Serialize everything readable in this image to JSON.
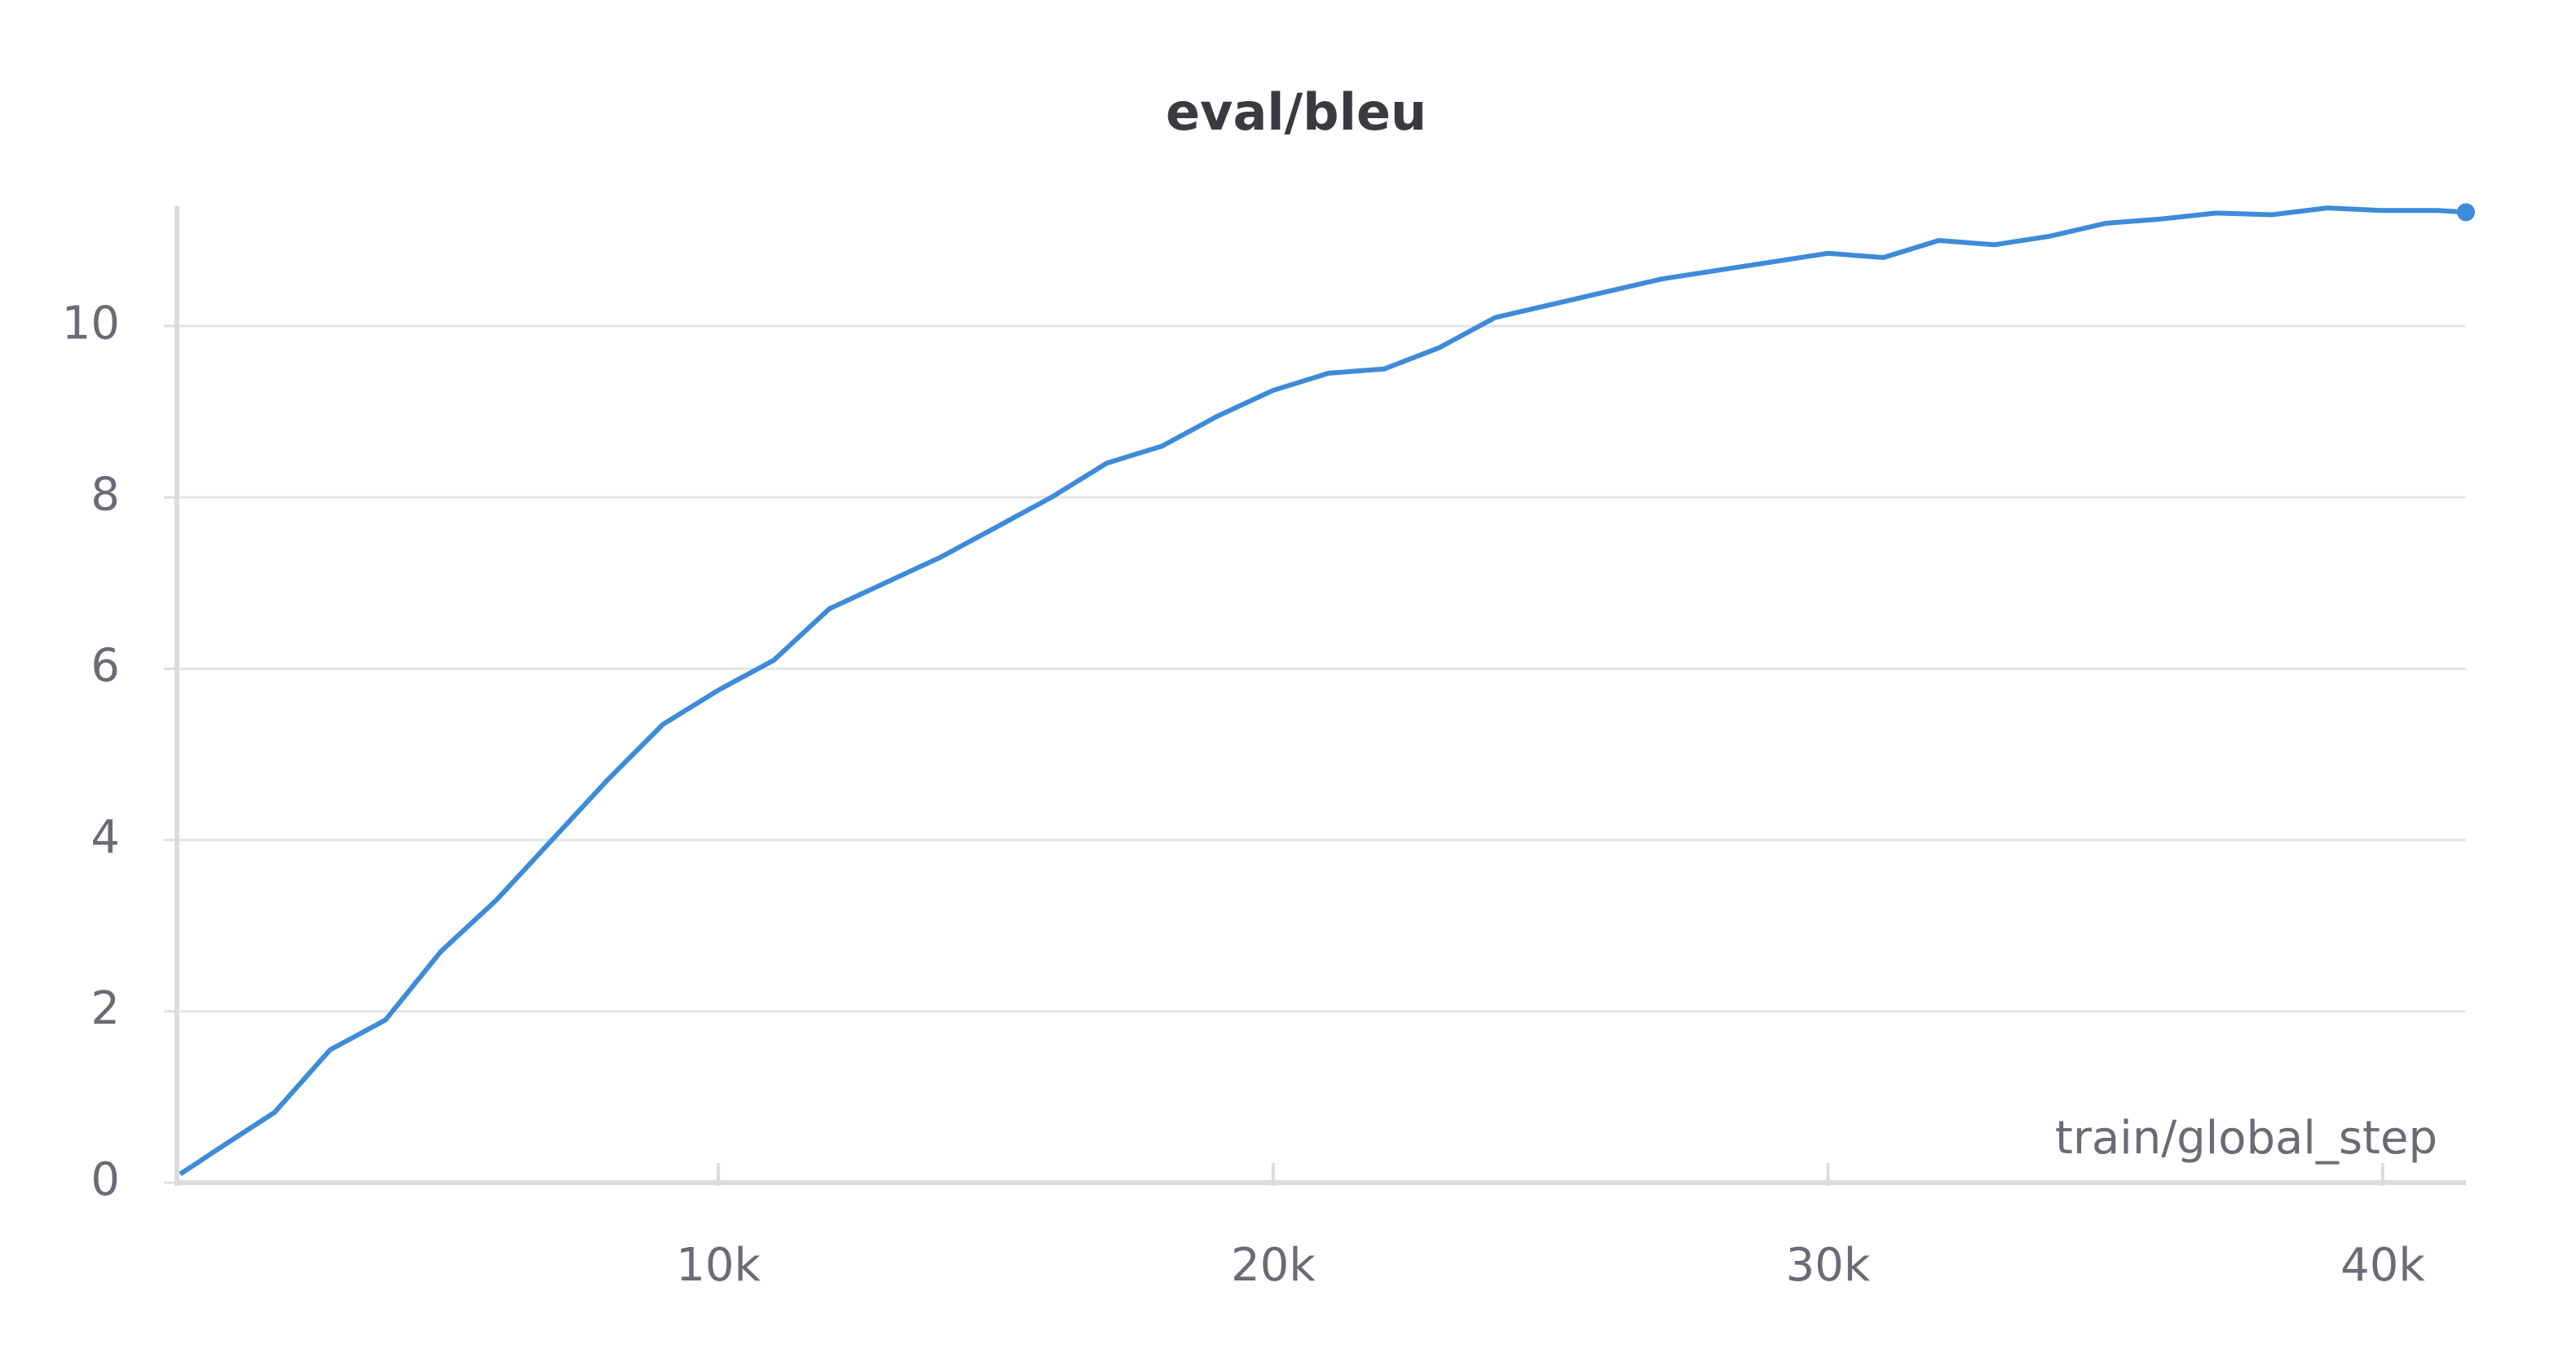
{
  "chart_data": {
    "type": "line",
    "title": "eval/bleu",
    "x_label": "train/global_step",
    "x": [
      300,
      1000,
      2000,
      3000,
      4000,
      5000,
      6000,
      7000,
      8000,
      9000,
      10000,
      11000,
      12000,
      13000,
      14000,
      15000,
      16000,
      17000,
      18000,
      19000,
      20000,
      21000,
      22000,
      23000,
      24000,
      25000,
      26000,
      27000,
      28000,
      29000,
      30000,
      31000,
      32000,
      33000,
      34000,
      35000,
      36000,
      37000,
      38000,
      39000,
      40000,
      41000,
      41500
    ],
    "series": [
      {
        "name": "eval/bleu",
        "color": "#3d8bd9",
        "values": [
          0.1,
          0.4,
          0.82,
          1.55,
          1.9,
          2.7,
          3.3,
          4.0,
          4.7,
          5.35,
          5.75,
          6.1,
          6.7,
          7.0,
          7.3,
          7.65,
          8.0,
          8.4,
          8.6,
          8.95,
          9.25,
          9.45,
          9.5,
          9.75,
          10.1,
          10.25,
          10.4,
          10.55,
          10.65,
          10.75,
          10.85,
          10.8,
          11.0,
          10.95,
          11.05,
          11.2,
          11.25,
          11.32,
          11.3,
          11.38,
          11.35,
          11.35,
          11.33
        ]
      }
    ],
    "xlim": [
      240,
      41500
    ],
    "xticks": [
      {
        "value": 10000,
        "label": "10k"
      },
      {
        "value": 20000,
        "label": "20k"
      },
      {
        "value": 30000,
        "label": "30k"
      },
      {
        "value": 40000,
        "label": "40k"
      }
    ],
    "ylim": [
      0,
      11.4
    ],
    "yticks": [
      0,
      2,
      4,
      6,
      8,
      10
    ],
    "grid": true
  }
}
